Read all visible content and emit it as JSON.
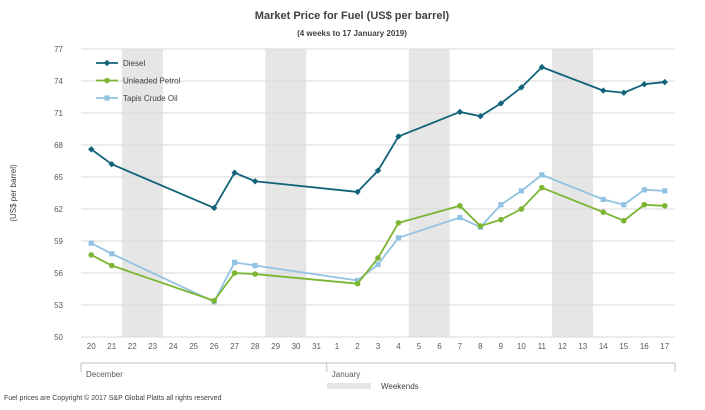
{
  "chart_data": {
    "type": "line",
    "title": "Market Price for Fuel (US$  per barrel)",
    "subtitle": "(4 weeks to 17 January 2019)",
    "ylabel": "(US$ per barrel)",
    "xlabel": "",
    "ylim": [
      50,
      77
    ],
    "yticks": [
      50,
      53,
      56,
      59,
      62,
      65,
      68,
      71,
      74,
      77
    ],
    "grid": "horizontal",
    "legend_position": "top-left",
    "categories": [
      "20",
      "21",
      "22",
      "23",
      "24",
      "25",
      "26",
      "27",
      "28",
      "29",
      "30",
      "31",
      "1",
      "2",
      "3",
      "4",
      "5",
      "6",
      "7",
      "8",
      "9",
      "10",
      "11",
      "12",
      "13",
      "14",
      "15",
      "16",
      "17"
    ],
    "month_labels": [
      {
        "label": "December",
        "start_index": 0,
        "end_index": 11
      },
      {
        "label": "January",
        "start_index": 12,
        "end_index": 28
      }
    ],
    "weekend_label": "Weekends",
    "weekend_bands": [
      [
        2,
        3
      ],
      [
        9,
        10
      ],
      [
        16,
        17
      ],
      [
        23,
        24
      ]
    ],
    "series": [
      {
        "name": "Diesel",
        "color": "#11637a",
        "marker": "diamond",
        "x": [
          0,
          1,
          6,
          7,
          8,
          13,
          14,
          15,
          18,
          19,
          20,
          21,
          22,
          25,
          26,
          27,
          28
        ],
        "values": [
          67.6,
          66.2,
          62.1,
          65.4,
          64.6,
          63.6,
          65.6,
          68.8,
          71.1,
          70.7,
          71.9,
          73.4,
          75.3,
          73.1,
          72.9,
          73.7,
          73.9
        ]
      },
      {
        "name": "Unleaded Petrol",
        "color": "#7bb532",
        "marker": "circle",
        "x": [
          0,
          1,
          6,
          7,
          8,
          13,
          14,
          15,
          18,
          19,
          20,
          21,
          22,
          25,
          26,
          27,
          28
        ],
        "values": [
          57.7,
          56.7,
          53.4,
          56.0,
          55.9,
          55.0,
          57.4,
          60.7,
          62.3,
          60.4,
          61.0,
          62.0,
          64.0,
          61.7,
          60.9,
          62.4,
          62.3
        ]
      },
      {
        "name": "Tapis Crude Oil",
        "color": "#92c3e2",
        "marker": "square",
        "x": [
          0,
          1,
          6,
          7,
          8,
          13,
          14,
          15,
          18,
          19,
          20,
          21,
          22,
          25,
          26,
          27,
          28
        ],
        "values": [
          58.8,
          57.8,
          53.3,
          57.0,
          56.7,
          55.3,
          56.8,
          59.3,
          61.2,
          60.3,
          62.4,
          63.7,
          65.2,
          62.9,
          62.4,
          63.8,
          63.7
        ]
      }
    ]
  },
  "footer": "Fuel prices are Copyright © 2017  S&P Global  Platts all rights reserved"
}
